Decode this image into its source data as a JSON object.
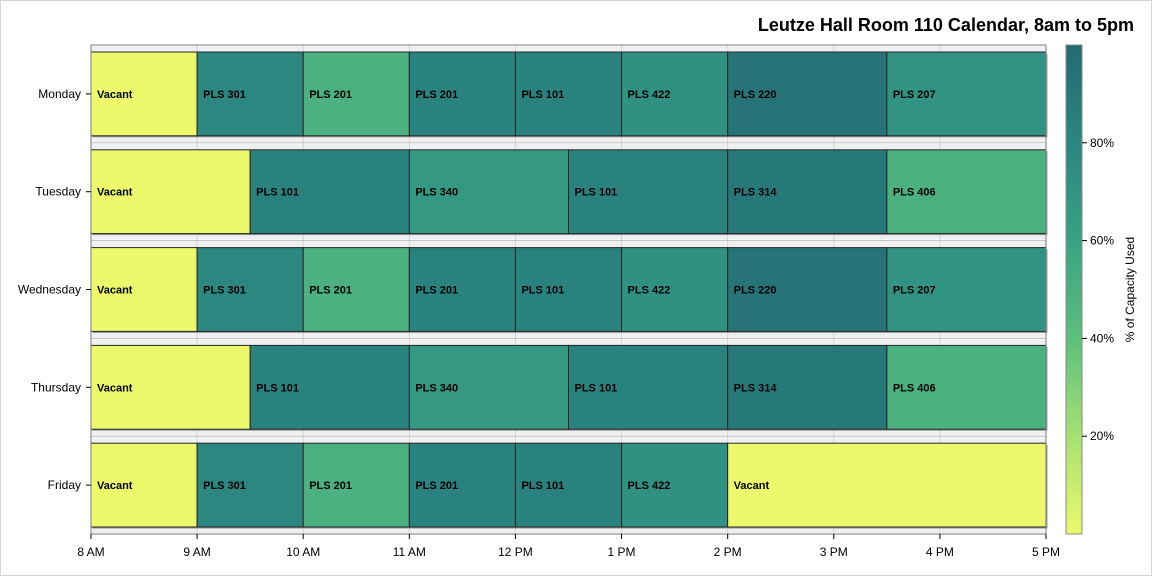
{
  "chart_data": {
    "type": "bar",
    "orientation": "horizontal",
    "stacked": true,
    "title": "Leutze Hall Room 110 Calendar, 8am to 5pm",
    "categories": [
      "Monday",
      "Tuesday",
      "Wednesday",
      "Thursday",
      "Friday"
    ],
    "x_ticks": [
      {
        "value": 8,
        "label": "8 AM"
      },
      {
        "value": 9,
        "label": "9 AM"
      },
      {
        "value": 10,
        "label": "10 AM"
      },
      {
        "value": 11,
        "label": "11 AM"
      },
      {
        "value": 12,
        "label": "12 PM"
      },
      {
        "value": 13,
        "label": "1 PM"
      },
      {
        "value": 14,
        "label": "2 PM"
      },
      {
        "value": 15,
        "label": "3 PM"
      },
      {
        "value": 16,
        "label": "4 PM"
      },
      {
        "value": 17,
        "label": "5 PM"
      }
    ],
    "xlim": [
      8,
      17
    ],
    "colorbar": {
      "label": "% of Capacity Used",
      "range": [
        0,
        100
      ],
      "ticks": [
        20,
        40,
        60,
        80
      ],
      "tick_suffix": "%",
      "stops": [
        "#ebf96b",
        "#a6e173",
        "#5cbf7c",
        "#3aa283",
        "#2a8680",
        "#246a72"
      ]
    },
    "schedule": [
      {
        "day": "Monday",
        "blocks": [
          {
            "label": "Vacant",
            "start": 8,
            "end": 9,
            "pct": 0
          },
          {
            "label": "PLS 301",
            "start": 9,
            "end": 10,
            "pct": 79
          },
          {
            "label": "PLS 201",
            "start": 10,
            "end": 11,
            "pct": 50
          },
          {
            "label": "PLS 201",
            "start": 11,
            "end": 12,
            "pct": 83
          },
          {
            "label": "PLS 101",
            "start": 12,
            "end": 13,
            "pct": 83
          },
          {
            "label": "PLS 422",
            "start": 13,
            "end": 14,
            "pct": 73
          },
          {
            "label": "PLS 220",
            "start": 14,
            "end": 15.5,
            "pct": 93
          },
          {
            "label": "PLS 207",
            "start": 15.5,
            "end": 17,
            "pct": 71
          }
        ]
      },
      {
        "day": "Tuesday",
        "blocks": [
          {
            "label": "Vacant",
            "start": 8,
            "end": 9.5,
            "pct": 0
          },
          {
            "label": "PLS 101",
            "start": 9.5,
            "end": 11,
            "pct": 83
          },
          {
            "label": "PLS 340",
            "start": 11,
            "end": 12.5,
            "pct": 67
          },
          {
            "label": "PLS 101",
            "start": 12.5,
            "end": 14,
            "pct": 83
          },
          {
            "label": "PLS 314",
            "start": 14,
            "end": 15.5,
            "pct": 90
          },
          {
            "label": "PLS 406",
            "start": 15.5,
            "end": 17,
            "pct": 50
          }
        ]
      },
      {
        "day": "Wednesday",
        "blocks": [
          {
            "label": "Vacant",
            "start": 8,
            "end": 9,
            "pct": 0
          },
          {
            "label": "PLS 301",
            "start": 9,
            "end": 10,
            "pct": 79
          },
          {
            "label": "PLS 201",
            "start": 10,
            "end": 11,
            "pct": 50
          },
          {
            "label": "PLS 201",
            "start": 11,
            "end": 12,
            "pct": 83
          },
          {
            "label": "PLS 101",
            "start": 12,
            "end": 13,
            "pct": 83
          },
          {
            "label": "PLS 422",
            "start": 13,
            "end": 14,
            "pct": 73
          },
          {
            "label": "PLS 220",
            "start": 14,
            "end": 15.5,
            "pct": 93
          },
          {
            "label": "PLS 207",
            "start": 15.5,
            "end": 17,
            "pct": 71
          }
        ]
      },
      {
        "day": "Thursday",
        "blocks": [
          {
            "label": "Vacant",
            "start": 8,
            "end": 9.5,
            "pct": 0
          },
          {
            "label": "PLS 101",
            "start": 9.5,
            "end": 11,
            "pct": 83
          },
          {
            "label": "PLS 340",
            "start": 11,
            "end": 12.5,
            "pct": 67
          },
          {
            "label": "PLS 101",
            "start": 12.5,
            "end": 14,
            "pct": 83
          },
          {
            "label": "PLS 314",
            "start": 14,
            "end": 15.5,
            "pct": 90
          },
          {
            "label": "PLS 406",
            "start": 15.5,
            "end": 17,
            "pct": 50
          }
        ]
      },
      {
        "day": "Friday",
        "blocks": [
          {
            "label": "Vacant",
            "start": 8,
            "end": 9,
            "pct": 0
          },
          {
            "label": "PLS 301",
            "start": 9,
            "end": 10,
            "pct": 79
          },
          {
            "label": "PLS 201",
            "start": 10,
            "end": 11,
            "pct": 50
          },
          {
            "label": "PLS 201",
            "start": 11,
            "end": 12,
            "pct": 83
          },
          {
            "label": "PLS 101",
            "start": 12,
            "end": 13,
            "pct": 83
          },
          {
            "label": "PLS 422",
            "start": 13,
            "end": 14,
            "pct": 73
          },
          {
            "label": "Vacant",
            "start": 14,
            "end": 17,
            "pct": 0
          }
        ]
      }
    ]
  }
}
